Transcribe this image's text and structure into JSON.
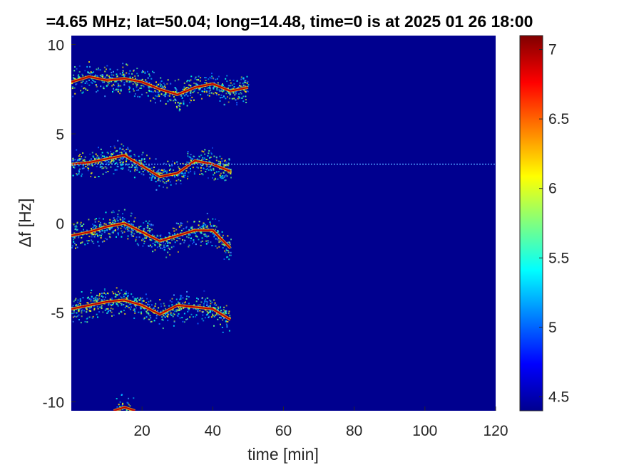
{
  "chart_data": {
    "type": "heatmap",
    "title": "=4.65 MHz;  lat=50.04; long=14.48, time=0 is at 2025 01 26 18:00",
    "xlabel": "time [min]",
    "ylabel": "Δf [Hz]",
    "xlim": [
      0,
      120
    ],
    "ylim": [
      -10.5,
      10.5
    ],
    "xticks": [
      20,
      40,
      60,
      80,
      100,
      120
    ],
    "yticks": [
      10,
      5,
      0,
      -5,
      -10
    ],
    "xtick_labels": [
      "20",
      "40",
      "60",
      "80",
      "100",
      "120"
    ],
    "ytick_labels": [
      "10",
      "5",
      "0",
      "-5",
      "-10"
    ],
    "colorbar": {
      "colormap": "jet",
      "clim": [
        4.4,
        7.1
      ],
      "ticks": [
        7,
        6.5,
        6,
        5.5,
        5,
        4.5
      ],
      "tick_labels": [
        "7",
        "6.5",
        "6",
        "5.5",
        "5",
        "4.5"
      ]
    },
    "background_color": "#00008f",
    "constant_line": {
      "y": 3.3,
      "x_range": [
        0,
        120
      ]
    },
    "traces": [
      {
        "x": [
          0,
          5,
          10,
          15,
          20,
          25,
          30,
          35,
          40,
          45,
          50
        ],
        "y": [
          7.9,
          8.2,
          8.0,
          8.1,
          7.9,
          7.5,
          7.2,
          7.6,
          7.8,
          7.4,
          7.6
        ]
      },
      {
        "x": [
          0,
          5,
          10,
          15,
          20,
          25,
          30,
          35,
          40,
          45
        ],
        "y": [
          3.3,
          3.4,
          3.6,
          3.8,
          3.2,
          2.6,
          2.8,
          3.5,
          3.3,
          2.9
        ]
      },
      {
        "x": [
          0,
          5,
          10,
          15,
          20,
          25,
          30,
          35,
          40,
          45
        ],
        "y": [
          -0.7,
          -0.5,
          -0.2,
          0.0,
          -0.5,
          -1.0,
          -0.7,
          -0.4,
          -0.4,
          -1.4
        ]
      },
      {
        "x": [
          0,
          5,
          10,
          15,
          20,
          25,
          30,
          35,
          40,
          45
        ],
        "y": [
          -4.8,
          -4.6,
          -4.4,
          -4.3,
          -4.6,
          -5.1,
          -4.6,
          -4.7,
          -4.8,
          -5.4
        ]
      },
      {
        "x": [
          12,
          15,
          18
        ],
        "y": [
          -10.5,
          -10.3,
          -10.5
        ]
      }
    ]
  }
}
